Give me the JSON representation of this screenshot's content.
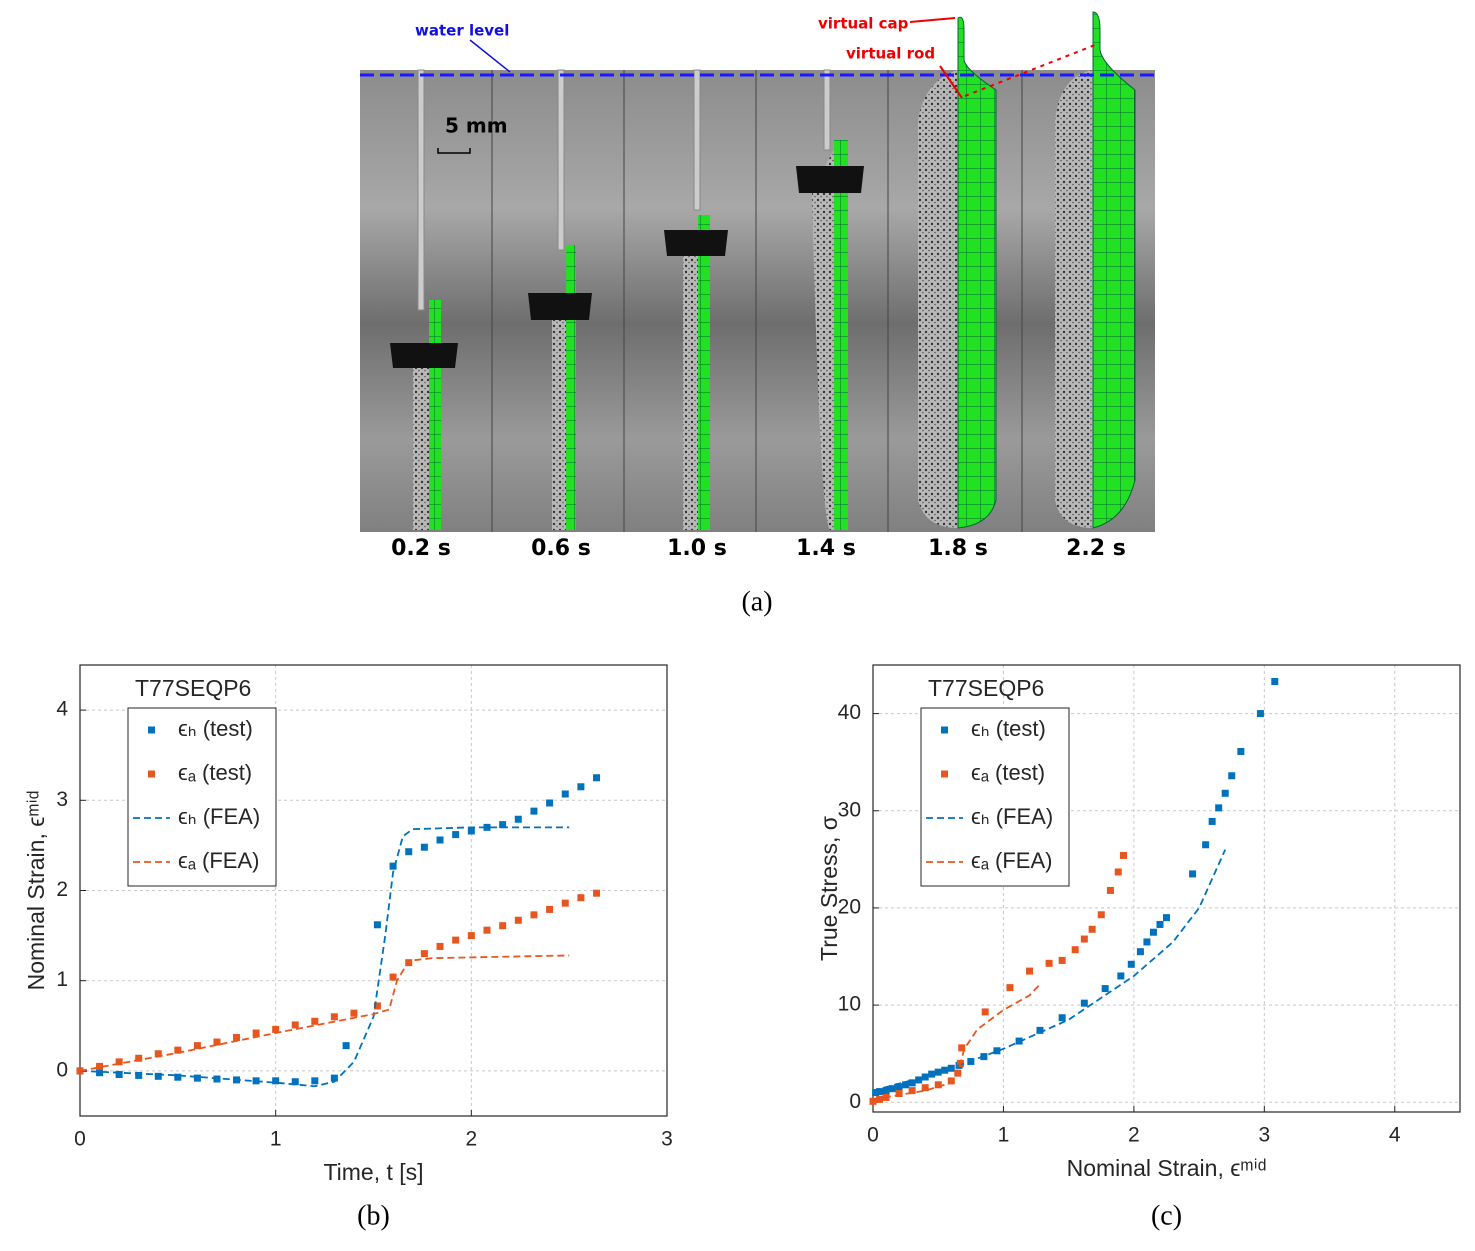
{
  "panel_a": {
    "water_level": "water level",
    "virtual_cap": "virtual cap",
    "virtual_rod": "virtual rod",
    "scale_bar": "5 mm",
    "frame_labels": [
      "0.2 s",
      "0.6 s",
      "1.0 s",
      "1.4 s",
      "1.8 s",
      "2.2 s"
    ],
    "caption": "(a)"
  },
  "chart_data": [
    {
      "type": "scatter",
      "caption": "(b)",
      "legend_title": "T77SEQP6",
      "xlabel": "Time, t [s]",
      "ylabel": "Nominal Strain, ϵᵐⁱᵈ",
      "xlim": [
        0,
        3
      ],
      "ylim": [
        -0.5,
        4.5
      ],
      "xticks": [
        0,
        1,
        2,
        3
      ],
      "yticks": [
        0,
        1,
        2,
        3,
        4
      ],
      "grid": true,
      "legend": "upper left",
      "series": [
        {
          "name": "ϵₕ (test)",
          "color": "#0072bd",
          "style": "marker",
          "x": [
            0,
            0.1,
            0.2,
            0.3,
            0.4,
            0.5,
            0.6,
            0.7,
            0.8,
            0.9,
            1.0,
            1.1,
            1.2,
            1.3,
            1.36,
            1.52,
            1.6,
            1.68,
            1.76,
            1.84,
            1.92,
            2.0,
            2.08,
            2.16,
            2.24,
            2.32,
            2.4,
            2.48,
            2.56,
            2.64
          ],
          "values": [
            0,
            -0.02,
            -0.04,
            -0.05,
            -0.06,
            -0.07,
            -0.08,
            -0.09,
            -0.1,
            -0.11,
            -0.11,
            -0.12,
            -0.11,
            -0.08,
            0.28,
            1.62,
            2.27,
            2.43,
            2.48,
            2.56,
            2.62,
            2.66,
            2.7,
            2.73,
            2.79,
            2.88,
            2.97,
            3.07,
            3.15,
            3.25
          ]
        },
        {
          "name": "ϵₐ (test)",
          "color": "#e8561f",
          "style": "marker",
          "x": [
            0,
            0.1,
            0.2,
            0.3,
            0.4,
            0.5,
            0.6,
            0.7,
            0.8,
            0.9,
            1.0,
            1.1,
            1.2,
            1.3,
            1.4,
            1.52,
            1.6,
            1.68,
            1.76,
            1.84,
            1.92,
            2.0,
            2.08,
            2.16,
            2.24,
            2.32,
            2.4,
            2.48,
            2.56,
            2.64
          ],
          "values": [
            0,
            0.05,
            0.1,
            0.14,
            0.19,
            0.23,
            0.28,
            0.32,
            0.37,
            0.42,
            0.46,
            0.51,
            0.55,
            0.6,
            0.64,
            0.72,
            1.04,
            1.2,
            1.3,
            1.38,
            1.45,
            1.5,
            1.56,
            1.61,
            1.67,
            1.73,
            1.79,
            1.86,
            1.92,
            1.97
          ]
        },
        {
          "name": "ϵₕ (FEA)",
          "color": "#0072bd",
          "style": "dashed",
          "x": [
            0,
            0.5,
            1.0,
            1.2,
            1.3,
            1.4,
            1.5,
            1.56,
            1.6,
            1.65,
            1.7,
            2.0,
            2.5
          ],
          "values": [
            0,
            -0.05,
            -0.13,
            -0.17,
            -0.12,
            0.1,
            0.6,
            1.5,
            2.2,
            2.6,
            2.68,
            2.7,
            2.7
          ]
        },
        {
          "name": "ϵₐ (FEA)",
          "color": "#e8561f",
          "style": "dashed",
          "x": [
            0,
            0.5,
            1.0,
            1.5,
            1.58,
            1.62,
            1.68,
            1.8,
            2.5
          ],
          "values": [
            0,
            0.2,
            0.42,
            0.63,
            0.68,
            1.0,
            1.22,
            1.25,
            1.28
          ]
        }
      ]
    },
    {
      "type": "scatter",
      "caption": "(c)",
      "legend_title": "T77SEQP6",
      "xlabel": "Nominal Strain, ϵᵐⁱᵈ",
      "ylabel": "True Stress, σ",
      "xlim": [
        0,
        4.5
      ],
      "ylim": [
        -1,
        45
      ],
      "xticks": [
        0,
        1,
        2,
        3,
        4
      ],
      "yticks": [
        0,
        10,
        20,
        30,
        40
      ],
      "grid": true,
      "legend": "upper left",
      "series": [
        {
          "name": "ϵₕ (test)",
          "color": "#0072bd",
          "style": "marker",
          "x": [
            0.02,
            0.05,
            0.1,
            0.15,
            0.2,
            0.25,
            0.3,
            0.35,
            0.4,
            0.45,
            0.5,
            0.55,
            0.6,
            0.66,
            0.75,
            0.85,
            0.95,
            1.12,
            1.28,
            1.45,
            1.62,
            1.78,
            1.9,
            1.98,
            2.05,
            2.1,
            2.15,
            2.2,
            2.25,
            2.45,
            2.55,
            2.6,
            2.65,
            2.7,
            2.75,
            2.82,
            2.97,
            3.08
          ],
          "values": [
            1,
            1.1,
            1.2,
            1.4,
            1.6,
            1.8,
            2.0,
            2.3,
            2.6,
            2.9,
            3.1,
            3.3,
            3.5,
            3.8,
            4.2,
            4.7,
            5.3,
            6.3,
            7.4,
            8.7,
            10.2,
            11.7,
            13,
            14.2,
            15.5,
            16.5,
            17.5,
            18.3,
            19,
            23.5,
            26.5,
            28.9,
            30.3,
            31.8,
            33.6,
            36.1,
            40,
            43.3
          ]
        },
        {
          "name": "ϵₐ (test)",
          "color": "#e8561f",
          "style": "marker",
          "x": [
            0,
            0.05,
            0.1,
            0.2,
            0.3,
            0.4,
            0.5,
            0.6,
            0.65,
            0.67,
            0.68,
            0.86,
            1.05,
            1.2,
            1.35,
            1.45,
            1.55,
            1.62,
            1.68,
            1.75,
            1.82,
            1.88,
            1.92
          ],
          "values": [
            0.1,
            0.3,
            0.5,
            0.9,
            1.2,
            1.5,
            1.8,
            2.2,
            3,
            4,
            5.6,
            9.3,
            11.8,
            13.5,
            14.3,
            14.6,
            15.7,
            16.8,
            17.8,
            19.3,
            21.8,
            23.7,
            25.4
          ]
        },
        {
          "name": "ϵₕ (FEA)",
          "color": "#0072bd",
          "style": "dashed",
          "x": [
            0,
            0.5,
            0.7,
            1.0,
            1.5,
            2.0,
            2.3,
            2.5,
            2.6,
            2.7
          ],
          "values": [
            1.2,
            3,
            4,
            5.5,
            8.5,
            13,
            16.5,
            20,
            23,
            26
          ]
        },
        {
          "name": "ϵₐ (FEA)",
          "color": "#e8561f",
          "style": "dashed",
          "x": [
            0,
            0.4,
            0.6,
            0.65,
            0.7,
            0.8,
            1.0,
            1.2,
            1.27
          ],
          "values": [
            0.3,
            1.2,
            2,
            3,
            5.5,
            7.5,
            9.5,
            11,
            12
          ]
        }
      ]
    }
  ]
}
